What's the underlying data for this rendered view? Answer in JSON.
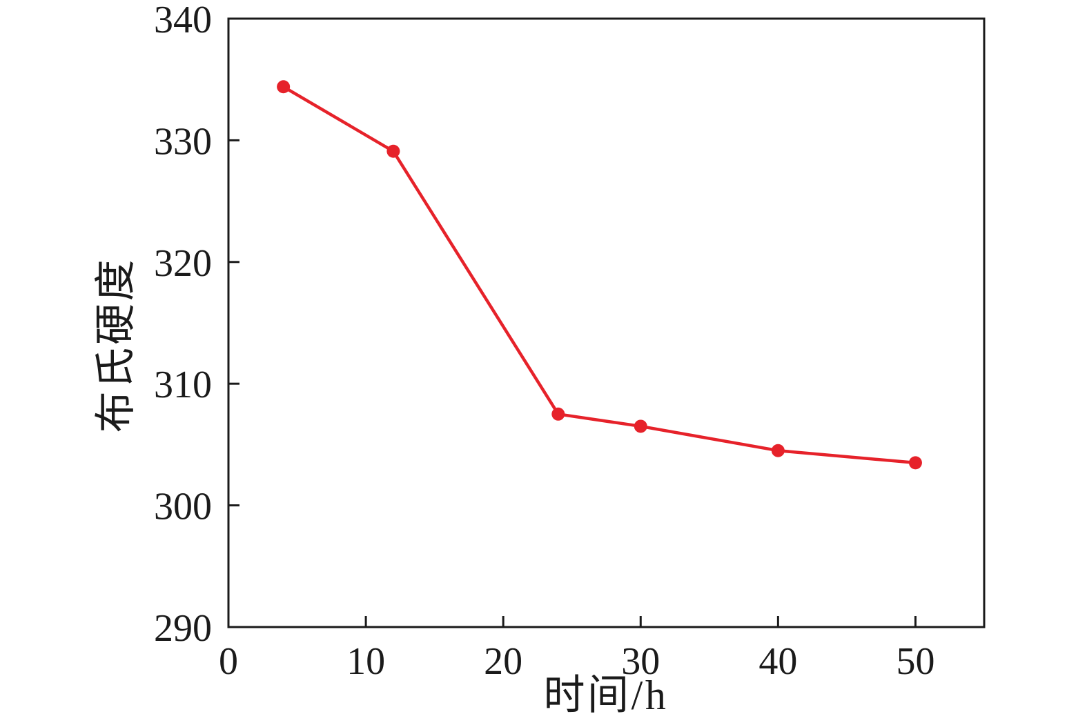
{
  "figure": {
    "background": "#ffffff",
    "axis_color": "#1a1a1a",
    "frame_stroke_width": 3
  },
  "chart_data": {
    "type": "line",
    "title": "",
    "xlabel": "时间/h",
    "ylabel": "布氏硬度",
    "xlim": [
      0,
      55
    ],
    "ylim": [
      290,
      340
    ],
    "xticks": [
      0,
      10,
      20,
      30,
      40,
      50
    ],
    "yticks": [
      290,
      300,
      310,
      320,
      330,
      340
    ],
    "grid": false,
    "legend": false,
    "series": [
      {
        "name": "布氏硬度",
        "color": "#e6222a",
        "marker": "circle",
        "marker_radius": 9.5,
        "line_width": 4.5,
        "x": [
          4,
          12,
          24,
          30,
          40,
          50
        ],
        "y": [
          334.4,
          329.1,
          307.5,
          306.5,
          304.5,
          303.5
        ]
      }
    ]
  }
}
